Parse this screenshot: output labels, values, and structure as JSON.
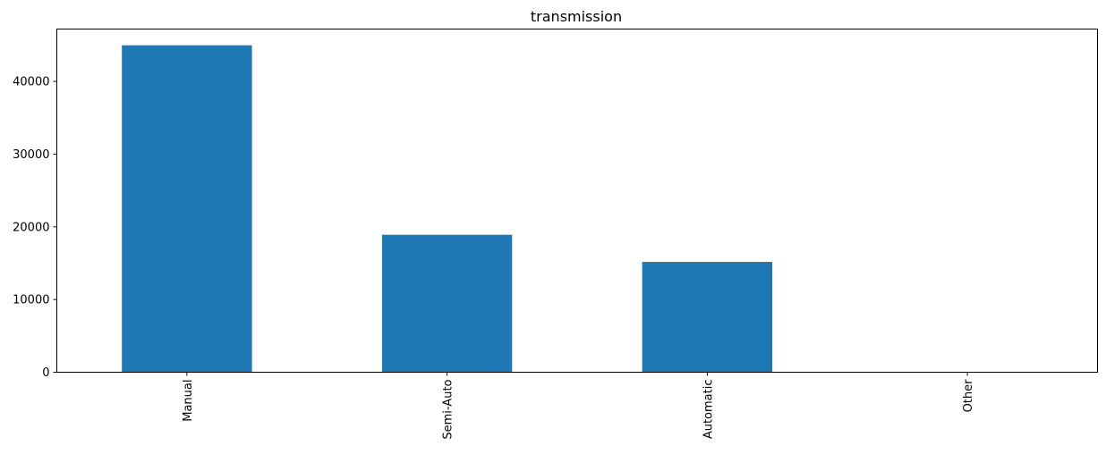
{
  "chart_data": {
    "type": "bar",
    "title": "transmission",
    "xlabel": "",
    "ylabel": "",
    "categories": [
      "Manual",
      "Semi-Auto",
      "Automatic",
      "Other"
    ],
    "values": [
      44967,
      18905,
      15175,
      9
    ],
    "ylim": [
      0,
      47200
    ],
    "yticks": [
      0,
      10000,
      20000,
      30000,
      40000
    ],
    "ytick_labels": [
      "0",
      "10000",
      "20000",
      "30000",
      "40000"
    ],
    "grid": false,
    "bar_color": "#1f77b4"
  }
}
